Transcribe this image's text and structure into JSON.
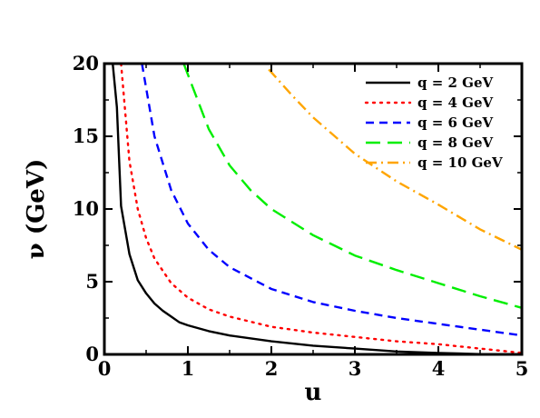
{
  "chart_data": {
    "type": "line",
    "title": "",
    "xlabel": "u",
    "ylabel": "ν (GeV)",
    "xlim": [
      0,
      5
    ],
    "ylim": [
      0,
      20
    ],
    "x_ticks": [
      "0",
      "1",
      "2",
      "3",
      "4",
      "5"
    ],
    "y_ticks": [
      "0",
      "5",
      "10",
      "15",
      "20"
    ],
    "grid": false,
    "legend_position": "top-right",
    "series": [
      {
        "name": "q = 2 GeV",
        "color": "#000000",
        "dash": "solid",
        "points": [
          [
            0.1,
            20
          ],
          [
            0.15,
            17
          ],
          [
            0.2,
            10.2
          ],
          [
            0.3,
            6.9
          ],
          [
            0.4,
            5.1
          ],
          [
            0.5,
            4.2
          ],
          [
            0.6,
            3.5
          ],
          [
            0.7,
            3.0
          ],
          [
            0.8,
            2.6
          ],
          [
            0.9,
            2.2
          ],
          [
            1.0,
            2.0
          ],
          [
            1.25,
            1.6
          ],
          [
            1.5,
            1.3
          ],
          [
            2.0,
            0.9
          ],
          [
            2.5,
            0.6
          ],
          [
            3.0,
            0.4
          ],
          [
            3.5,
            0.2
          ],
          [
            4.0,
            0.1
          ],
          [
            4.5,
            0.02
          ],
          [
            5.0,
            0.0
          ]
        ]
      },
      {
        "name": "q = 4 GeV",
        "color": "#ff0000",
        "dash": "dotted",
        "points": [
          [
            0.2,
            20
          ],
          [
            0.3,
            13.3
          ],
          [
            0.4,
            10.0
          ],
          [
            0.5,
            8.0
          ],
          [
            0.6,
            6.6
          ],
          [
            0.8,
            4.9
          ],
          [
            1.0,
            3.9
          ],
          [
            1.25,
            3.1
          ],
          [
            1.5,
            2.6
          ],
          [
            2.0,
            1.9
          ],
          [
            2.5,
            1.5
          ],
          [
            3.0,
            1.2
          ],
          [
            3.5,
            0.9
          ],
          [
            4.0,
            0.7
          ],
          [
            4.5,
            0.4
          ],
          [
            5.0,
            0.1
          ]
        ]
      },
      {
        "name": "q = 6 GeV",
        "color": "#0000ff",
        "dash": "dashed",
        "points": [
          [
            0.45,
            20
          ],
          [
            0.6,
            15.0
          ],
          [
            0.8,
            11.3
          ],
          [
            1.0,
            9.0
          ],
          [
            1.25,
            7.2
          ],
          [
            1.5,
            6.0
          ],
          [
            2.0,
            4.5
          ],
          [
            2.5,
            3.6
          ],
          [
            3.0,
            3.0
          ],
          [
            3.5,
            2.5
          ],
          [
            4.0,
            2.1
          ],
          [
            4.5,
            1.7
          ],
          [
            5.0,
            1.3
          ]
        ]
      },
      {
        "name": "q = 8 GeV",
        "color": "#00ee00",
        "dash": "longdash",
        "points": [
          [
            0.95,
            20
          ],
          [
            1.25,
            15.5
          ],
          [
            1.5,
            13.0
          ],
          [
            1.75,
            11.3
          ],
          [
            2.0,
            10.0
          ],
          [
            2.5,
            8.2
          ],
          [
            3.0,
            6.8
          ],
          [
            3.5,
            5.8
          ],
          [
            4.0,
            4.9
          ],
          [
            4.5,
            4.0
          ],
          [
            5.0,
            3.2
          ]
        ]
      },
      {
        "name": "q = 10 GeV",
        "color": "#ffa500",
        "dash": "dashdot",
        "points": [
          [
            1.97,
            19.6
          ],
          [
            2.25,
            17.8
          ],
          [
            2.5,
            16.3
          ],
          [
            3.0,
            13.8
          ],
          [
            3.5,
            11.9
          ],
          [
            4.0,
            10.3
          ],
          [
            4.5,
            8.6
          ],
          [
            5.0,
            7.2
          ]
        ]
      }
    ]
  }
}
